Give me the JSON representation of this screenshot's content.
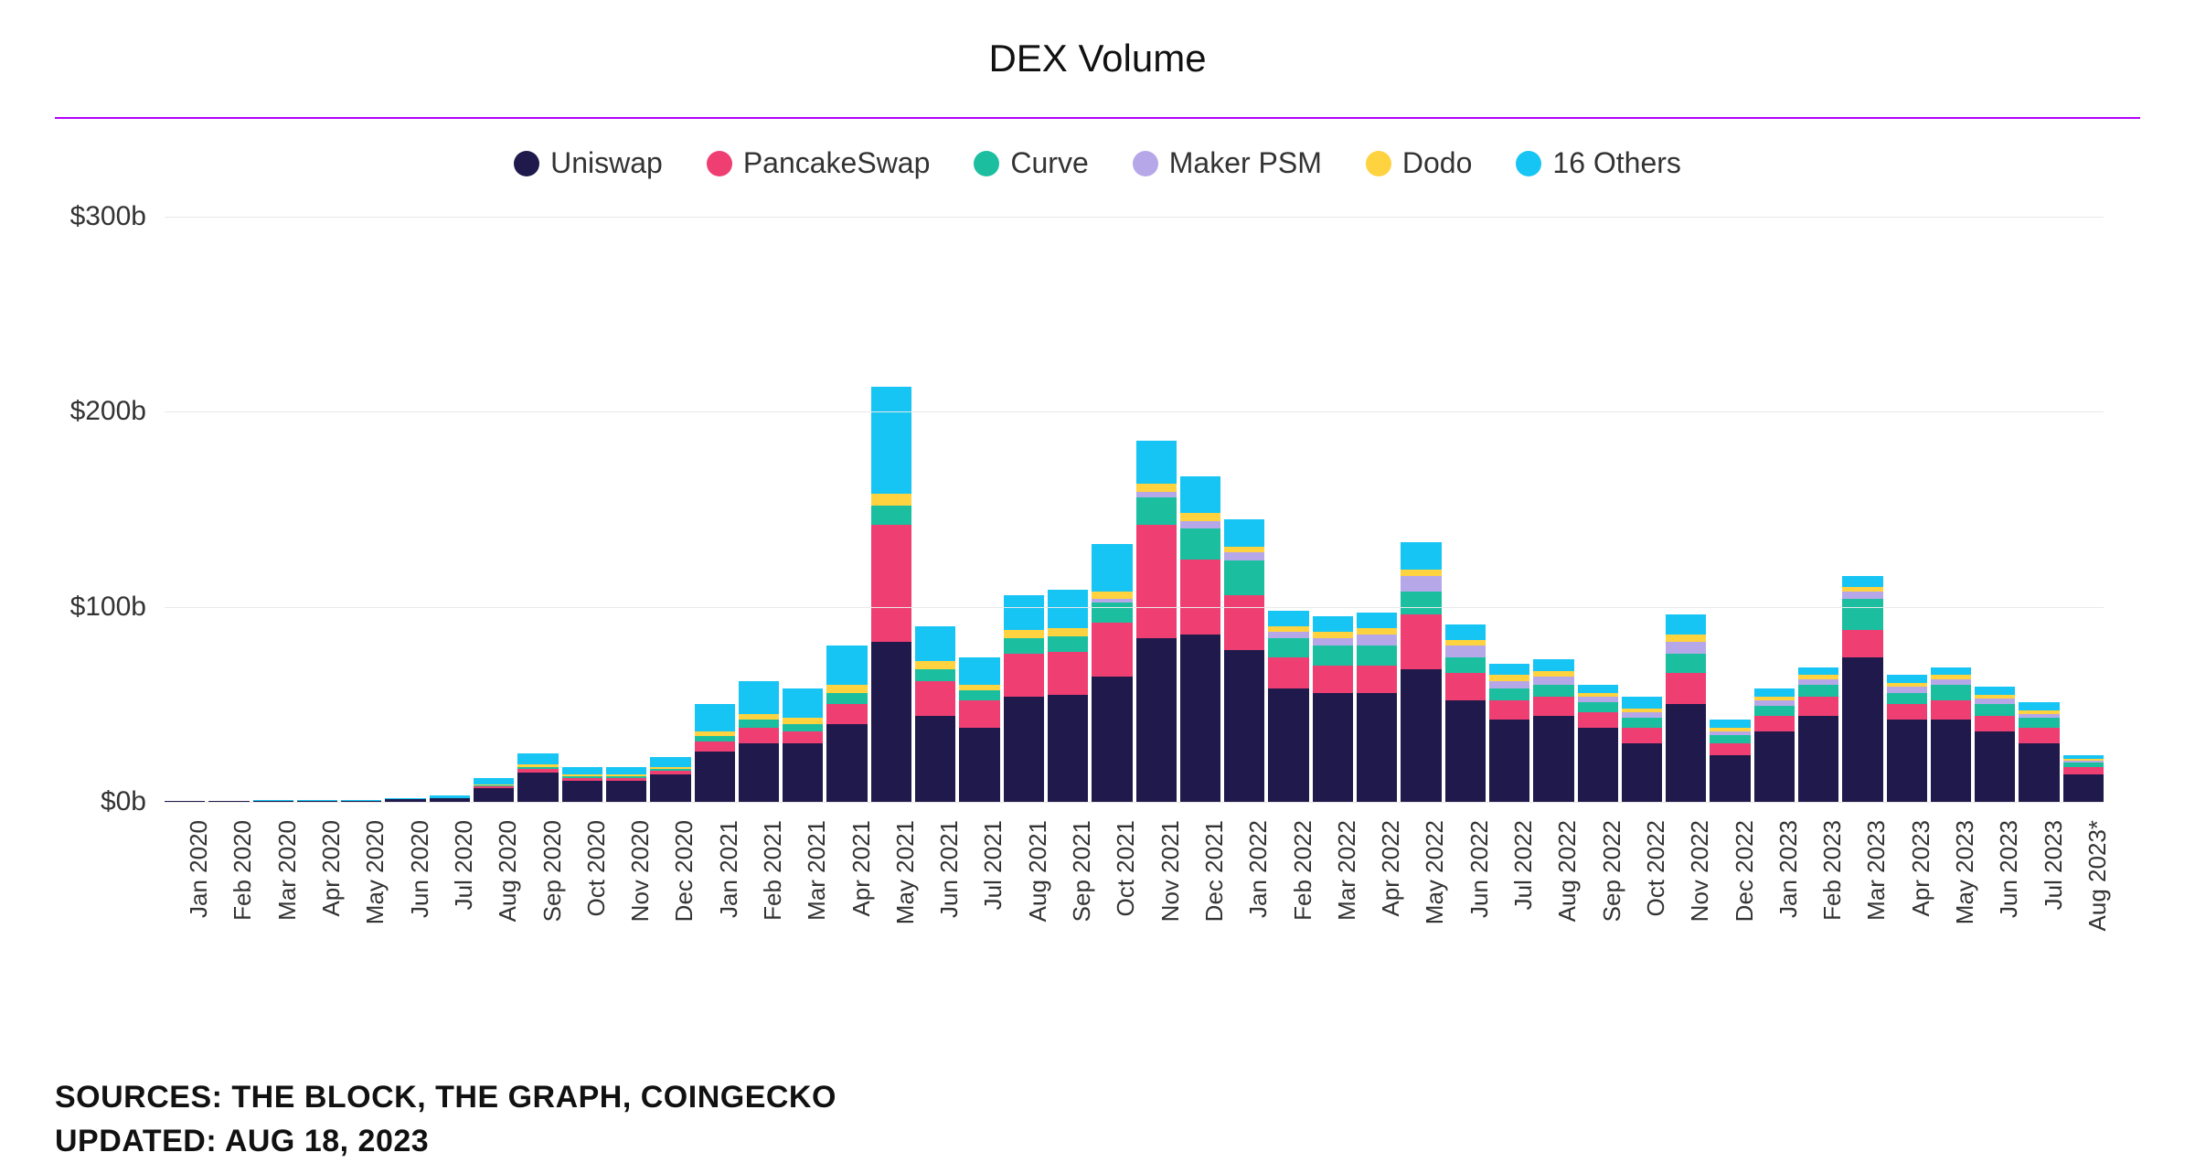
{
  "chart": {
    "type": "stacked-bar",
    "title": "DEX Volume",
    "divider_color": "#b100ff",
    "background_color": "#ffffff",
    "grid_color": "#e8e8e8",
    "title_fontsize": 42,
    "legend_fontsize": 32,
    "axis_label_fontsize": 30,
    "x_label_fontsize": 26,
    "ylim": [
      0,
      300
    ],
    "ytick_step": 100,
    "y_prefix": "$",
    "y_suffix": "b",
    "series": [
      {
        "name": "Uniswap",
        "color": "#1f1a4b"
      },
      {
        "name": "PancakeSwap",
        "color": "#ef3e72"
      },
      {
        "name": "Curve",
        "color": "#1bbfa0"
      },
      {
        "name": "Maker PSM",
        "color": "#b6a8e8"
      },
      {
        "name": "Dodo",
        "color": "#ffd23f"
      },
      {
        "name": "16 Others",
        "color": "#16c5f3"
      }
    ],
    "categories": [
      "Jan 2020",
      "Feb 2020",
      "Mar 2020",
      "Apr 2020",
      "May 2020",
      "Jun 2020",
      "Jul 2020",
      "Aug 2020",
      "Sep 2020",
      "Oct 2020",
      "Nov 2020",
      "Dec 2020",
      "Jan 2021",
      "Feb 2021",
      "Mar 2021",
      "Apr 2021",
      "May 2021",
      "Jun 2021",
      "Jul 2021",
      "Aug 2021",
      "Sep 2021",
      "Oct 2021",
      "Nov 2021",
      "Dec 2021",
      "Jan 2022",
      "Feb 2022",
      "Mar 2022",
      "Apr 2022",
      "May 2022",
      "Jun 2022",
      "Jul 2022",
      "Aug 2022",
      "Sep 2022",
      "Oct 2022",
      "Nov 2022",
      "Dec 2022",
      "Jan 2023",
      "Feb 2023",
      "Mar 2023",
      "Apr 2023",
      "May 2023",
      "Jun 2023",
      "Jul 2023",
      "Aug 2023*"
    ],
    "values": [
      [
        0.3,
        0,
        0,
        0,
        0,
        0.2
      ],
      [
        0.4,
        0,
        0,
        0,
        0,
        0.2
      ],
      [
        0.5,
        0,
        0,
        0,
        0,
        0.3
      ],
      [
        0.5,
        0,
        0,
        0,
        0,
        0.3
      ],
      [
        0.7,
        0,
        0,
        0,
        0,
        0.4
      ],
      [
        1.2,
        0,
        0,
        0,
        0,
        0.8
      ],
      [
        2.0,
        0,
        0,
        0,
        0,
        1.2
      ],
      [
        7.0,
        1.0,
        0.5,
        0,
        0.5,
        3.0
      ],
      [
        15,
        2,
        1,
        0,
        1,
        6
      ],
      [
        11,
        1,
        1,
        0,
        1,
        4
      ],
      [
        11,
        1,
        1,
        0,
        1,
        4
      ],
      [
        14,
        2,
        1,
        0,
        1,
        5
      ],
      [
        26,
        5,
        3,
        0,
        2,
        14
      ],
      [
        30,
        8,
        4,
        0,
        3,
        17
      ],
      [
        30,
        6,
        4,
        0,
        3,
        15
      ],
      [
        40,
        10,
        6,
        0,
        4,
        20
      ],
      [
        82,
        60,
        10,
        0,
        6,
        55
      ],
      [
        44,
        18,
        6,
        0,
        4,
        18
      ],
      [
        38,
        14,
        5,
        0,
        3,
        14
      ],
      [
        54,
        22,
        8,
        0,
        4,
        18
      ],
      [
        55,
        22,
        8,
        0,
        4,
        20
      ],
      [
        64,
        28,
        10,
        2,
        4,
        24
      ],
      [
        84,
        58,
        14,
        3,
        4,
        22
      ],
      [
        86,
        38,
        16,
        4,
        4,
        19
      ],
      [
        78,
        28,
        18,
        4,
        3,
        14
      ],
      [
        58,
        16,
        10,
        3,
        3,
        8
      ],
      [
        56,
        14,
        10,
        4,
        3,
        8
      ],
      [
        56,
        14,
        10,
        6,
        3,
        8
      ],
      [
        68,
        28,
        12,
        8,
        3,
        14
      ],
      [
        52,
        14,
        8,
        6,
        3,
        8
      ],
      [
        42,
        10,
        6,
        4,
        3,
        6
      ],
      [
        44,
        10,
        6,
        4,
        3,
        6
      ],
      [
        38,
        8,
        5,
        3,
        2,
        4
      ],
      [
        30,
        8,
        5,
        3,
        2,
        6
      ],
      [
        50,
        16,
        10,
        6,
        4,
        10
      ],
      [
        24,
        6,
        4,
        2,
        2,
        4
      ],
      [
        36,
        8,
        5,
        3,
        2,
        4
      ],
      [
        44,
        10,
        6,
        3,
        2,
        4
      ],
      [
        74,
        14,
        16,
        4,
        2,
        6
      ],
      [
        42,
        8,
        6,
        3,
        2,
        4
      ],
      [
        42,
        10,
        8,
        3,
        2,
        4
      ],
      [
        36,
        8,
        6,
        3,
        2,
        4
      ],
      [
        30,
        8,
        5,
        2,
        2,
        4
      ],
      [
        14,
        4,
        2,
        1,
        1,
        2
      ]
    ]
  },
  "footer": {
    "sources_label": "SOURCES: THE BLOCK, THE GRAPH, COINGECKO",
    "updated_label": "UPDATED: AUG 18, 2023"
  }
}
